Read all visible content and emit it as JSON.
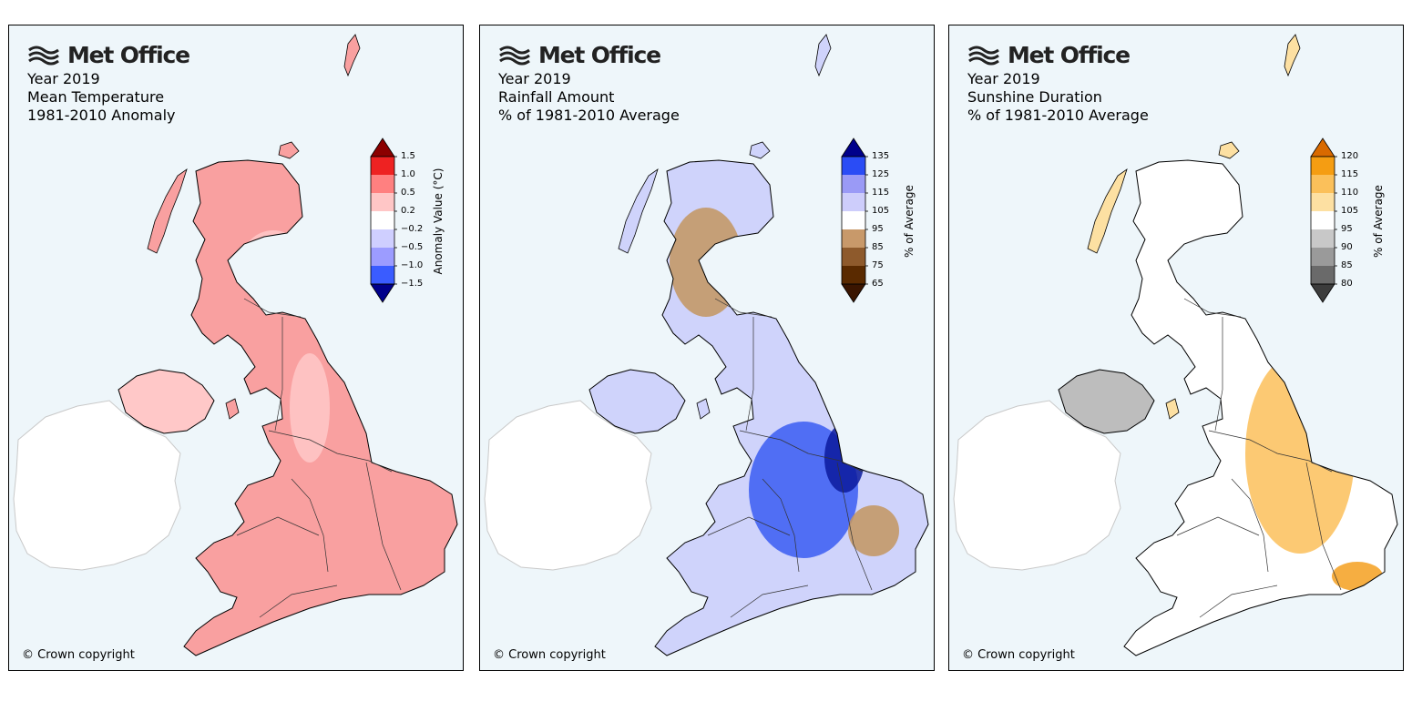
{
  "logo_text": "Met Office",
  "copyright": "© Crown copyright",
  "panels": [
    {
      "id": "temperature",
      "title_lines": [
        "Year 2019",
        "Mean Temperature",
        "1981-2010 Anomaly"
      ],
      "legend": {
        "axis_label": "Anomaly Value (°C)",
        "tick_labels": [
          "1.5",
          "1.0",
          "0.5",
          "0.2",
          "−0.2",
          "−0.5",
          "−1.0",
          "−1.5"
        ],
        "top_arrow_color": "#8b0000",
        "band_colors": [
          "#ee2222",
          "#ff8080",
          "#ffc6c6",
          "#ffffff",
          "#cfcfff",
          "#9c9cff",
          "#3a5cff"
        ],
        "bottom_arrow_color": "#00008b"
      },
      "map": {
        "base_color": "#f9a0a0",
        "ireland_color": "#ffffff",
        "patch_color": "#ffc8c8",
        "highlight_color": "#f07070",
        "patches": [
          {
            "region": "north-scotland",
            "color": "#ffc8c8"
          },
          {
            "region": "northern-ireland",
            "color": "#ffc8c8"
          },
          {
            "region": "central-england",
            "color": "#ffc8c8"
          }
        ]
      }
    },
    {
      "id": "rainfall",
      "title_lines": [
        "Year 2019",
        "Rainfall Amount",
        "% of 1981-2010 Average"
      ],
      "legend": {
        "axis_label": "% of Average",
        "tick_labels": [
          "135",
          "125",
          "115",
          "105",
          "95",
          "85",
          "75",
          "65"
        ],
        "top_arrow_color": "#00008b",
        "band_colors": [
          "#2a4cf5",
          "#9a9af6",
          "#cdcdfb",
          "#ffffff",
          "#c8996a",
          "#8e5a2c",
          "#5a2a00"
        ],
        "bottom_arrow_color": "#3a1500"
      },
      "map": {
        "base_color": "#cfd3fb",
        "ireland_color": "#ffffff",
        "patch_color": "#2f52f0",
        "highlight_color": "#c3955f",
        "patches": [
          {
            "region": "west-highlands",
            "color": "#c3955f"
          },
          {
            "region": "midlands",
            "color": "#3a5cf2"
          },
          {
            "region": "lincolnshire",
            "color": "#0a1a9c"
          },
          {
            "region": "east-anglia",
            "color": "#c3955f"
          }
        ]
      }
    },
    {
      "id": "sunshine",
      "title_lines": [
        "Year 2019",
        "Sunshine Duration",
        "% of 1981-2010 Average"
      ],
      "legend": {
        "axis_label": "% of Average",
        "tick_labels": [
          "120",
          "115",
          "110",
          "105",
          "95",
          "90",
          "85",
          "80"
        ],
        "top_arrow_color": "#d96a00",
        "band_colors": [
          "#f59d12",
          "#fbc05a",
          "#fde0a2",
          "#ffffff",
          "#c8c8c8",
          "#9a9a9a",
          "#6a6a6a"
        ],
        "bottom_arrow_color": "#3c3c3c"
      },
      "map": {
        "base_color": "#ffffff",
        "ireland_color": "#ffffff",
        "patch_color": "#fde0a2",
        "highlight_color": "#f7a830",
        "patches": [
          {
            "region": "northern-ireland",
            "color": "#bdbdbd"
          },
          {
            "region": "east-england",
            "color": "#fbc05a"
          },
          {
            "region": "south-east",
            "color": "#f5a020"
          }
        ]
      }
    }
  ]
}
